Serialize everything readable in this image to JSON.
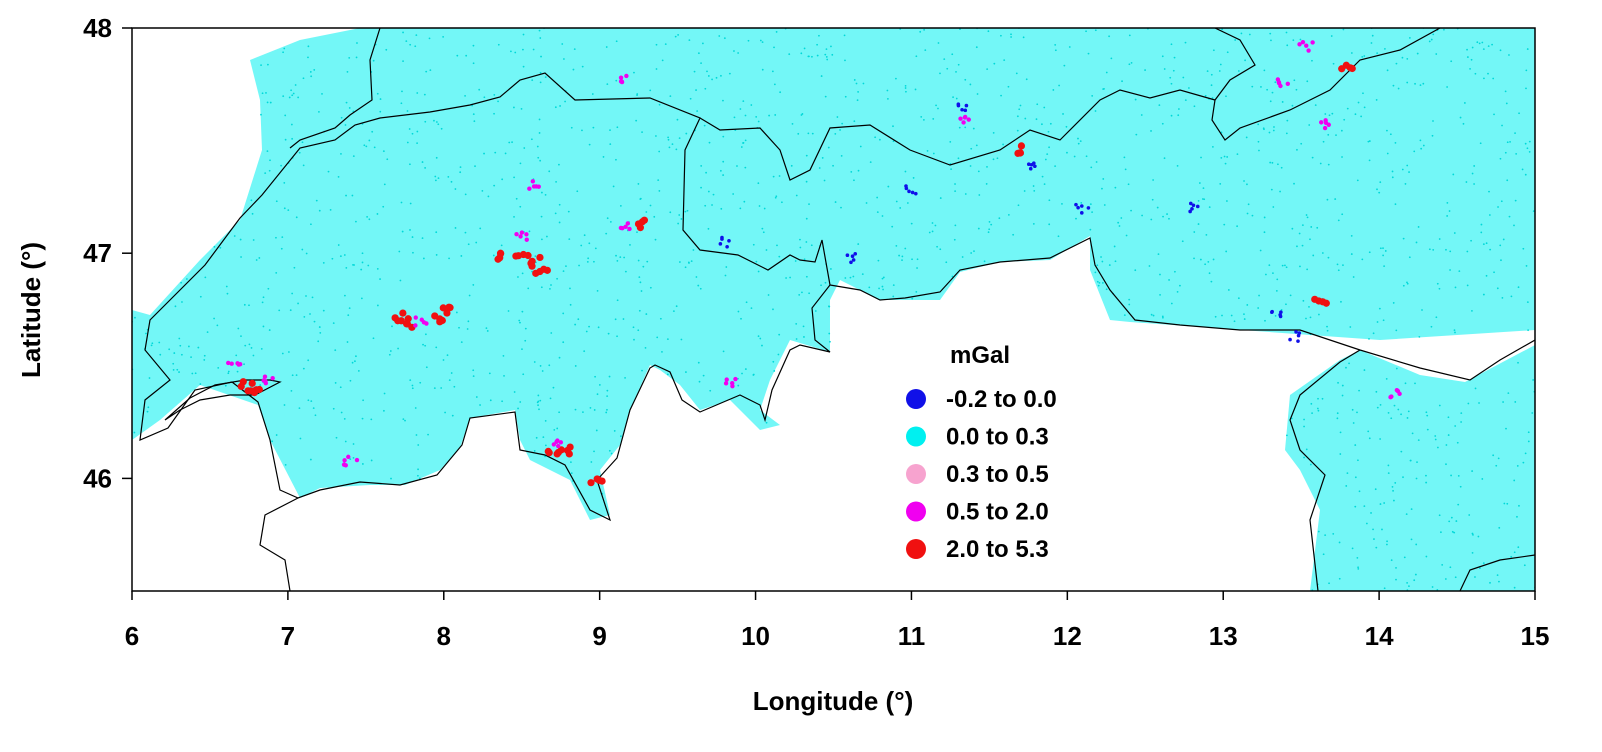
{
  "chart_data": {
    "type": "scatter",
    "title": "",
    "xlabel": "Longitude (°)",
    "ylabel": "Latitude (°)",
    "xlim": [
      6,
      15
    ],
    "ylim": [
      45.5,
      48
    ],
    "x_ticks": [
      "6",
      "7",
      "8",
      "9",
      "10",
      "11",
      "12",
      "13",
      "14",
      "15"
    ],
    "y_ticks": [
      "46",
      "47",
      "48"
    ],
    "grid": false,
    "legend": {
      "title": "mGal",
      "placement": "center",
      "entries": [
        {
          "range": "-0.2  to  0.0",
          "color": "#1010e8"
        },
        {
          "range": "0.0  to  0.3",
          "color": "#00f0f0"
        },
        {
          "range": "0.3  to  0.5",
          "color": "#f7a3cf"
        },
        {
          "range": "0.5  to  2.0",
          "color": "#f000f0"
        },
        {
          "range": "2.0  to  5.3",
          "color": "#f01010"
        }
      ]
    },
    "background_color": "#00f0f0",
    "clusters": [
      {
        "class": "2.0  to  5.3",
        "lon": 8.35,
        "lat": 46.99
      },
      {
        "class": "2.0  to  5.3",
        "lon": 8.5,
        "lat": 46.99
      },
      {
        "class": "2.0  to  5.3",
        "lon": 8.6,
        "lat": 46.96
      },
      {
        "class": "2.0  to  5.3",
        "lon": 8.62,
        "lat": 46.93
      },
      {
        "class": "2.0  to  5.3",
        "lon": 7.7,
        "lat": 46.72
      },
      {
        "class": "2.0  to  5.3",
        "lon": 7.76,
        "lat": 46.69
      },
      {
        "class": "2.0  to  5.3",
        "lon": 7.96,
        "lat": 46.71
      },
      {
        "class": "2.0  to  5.3",
        "lon": 8.0,
        "lat": 46.75
      },
      {
        "class": "2.0  to  5.3",
        "lon": 6.73,
        "lat": 46.41
      },
      {
        "class": "2.0  to  5.3",
        "lon": 6.8,
        "lat": 46.39
      },
      {
        "class": "2.0  to  5.3",
        "lon": 8.7,
        "lat": 46.13
      },
      {
        "class": "2.0  to  5.3",
        "lon": 8.78,
        "lat": 46.12
      },
      {
        "class": "2.0  to  5.3",
        "lon": 8.98,
        "lat": 46.0
      },
      {
        "class": "2.0  to  5.3",
        "lon": 9.28,
        "lat": 47.13
      },
      {
        "class": "2.0  to  5.3",
        "lon": 11.7,
        "lat": 47.46
      },
      {
        "class": "2.0  to  5.3",
        "lon": 13.62,
        "lat": 46.78
      },
      {
        "class": "2.0  to  5.3",
        "lon": 13.8,
        "lat": 47.84
      },
      {
        "class": "0.5  to  2.0",
        "lon": 8.5,
        "lat": 47.08
      },
      {
        "class": "0.5  to  2.0",
        "lon": 8.58,
        "lat": 47.3
      },
      {
        "class": "0.5  to  2.0",
        "lon": 9.15,
        "lat": 47.12
      },
      {
        "class": "0.5  to  2.0",
        "lon": 6.65,
        "lat": 46.5
      },
      {
        "class": "0.5  to  2.0",
        "lon": 6.88,
        "lat": 46.44
      },
      {
        "class": "0.5  to  2.0",
        "lon": 7.85,
        "lat": 46.7
      },
      {
        "class": "0.5  to  2.0",
        "lon": 8.72,
        "lat": 46.16
      },
      {
        "class": "0.5  to  2.0",
        "lon": 7.4,
        "lat": 46.08
      },
      {
        "class": "0.5  to  2.0",
        "lon": 9.13,
        "lat": 47.77
      },
      {
        "class": "0.5  to  2.0",
        "lon": 11.33,
        "lat": 47.6
      },
      {
        "class": "0.5  to  2.0",
        "lon": 13.53,
        "lat": 47.92
      },
      {
        "class": "0.5  to  2.0",
        "lon": 13.38,
        "lat": 47.75
      },
      {
        "class": "0.5  to  2.0",
        "lon": 13.65,
        "lat": 47.57
      },
      {
        "class": "0.5  to  2.0",
        "lon": 14.1,
        "lat": 46.37
      },
      {
        "class": "0.5  to  2.0",
        "lon": 9.85,
        "lat": 46.43
      },
      {
        "class": "-0.2  to  0.0",
        "lon": 11.0,
        "lat": 47.28
      },
      {
        "class": "-0.2  to  0.0",
        "lon": 11.75,
        "lat": 47.38
      },
      {
        "class": "-0.2  to  0.0",
        "lon": 9.8,
        "lat": 47.05
      },
      {
        "class": "-0.2  to  0.0",
        "lon": 10.6,
        "lat": 46.98
      },
      {
        "class": "-0.2  to  0.0",
        "lon": 11.33,
        "lat": 47.64
      },
      {
        "class": "-0.2  to  0.0",
        "lon": 12.8,
        "lat": 47.2
      },
      {
        "class": "-0.2  to  0.0",
        "lon": 13.35,
        "lat": 46.72
      },
      {
        "class": "-0.2  to  0.0",
        "lon": 13.45,
        "lat": 46.63
      },
      {
        "class": "-0.2  to  0.0",
        "lon": 12.1,
        "lat": 47.2
      }
    ]
  }
}
